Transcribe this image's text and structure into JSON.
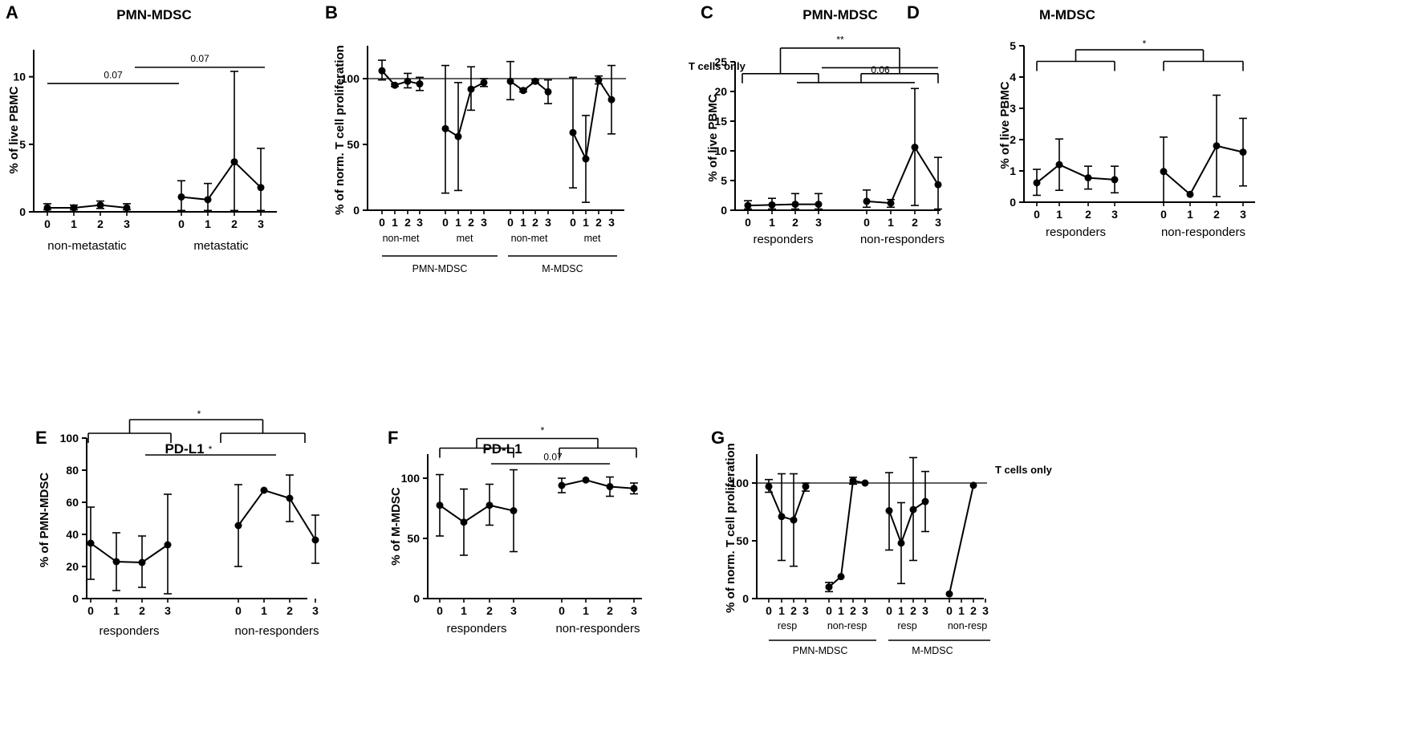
{
  "chart_data": [
    {
      "id": "A",
      "type": "line",
      "title": "PMN-MDSC",
      "ylabel": "% of live PBMC",
      "ylim": [
        0,
        12
      ],
      "yticks": [
        0,
        5,
        10
      ],
      "groups": [
        {
          "name": "non-metastatic",
          "x": [
            "0",
            "1",
            "2",
            "3"
          ],
          "values": [
            0.3,
            0.3,
            0.5,
            0.3
          ],
          "err_low": [
            0.15,
            0.15,
            0.25,
            0.15
          ],
          "err_high": [
            0.6,
            0.5,
            0.8,
            0.6
          ]
        },
        {
          "name": "metastatic",
          "x": [
            "0",
            "1",
            "2",
            "3"
          ],
          "values": [
            1.1,
            0.9,
            3.7,
            1.8
          ],
          "err_low": [
            0.1,
            0.1,
            0.1,
            0.1
          ],
          "err_high": [
            2.3,
            2.1,
            10.4,
            4.7
          ]
        }
      ],
      "annotations": [
        {
          "text": "0.07",
          "from": [
            0,
            0
          ],
          "to": [
            1,
            0
          ],
          "y": 9.5
        },
        {
          "text": "0.07",
          "from": [
            0,
            3
          ],
          "to": [
            1,
            3
          ],
          "y": 10.7
        }
      ]
    },
    {
      "id": "B",
      "type": "line",
      "title": "",
      "ylabel": "% of norm. T cell proliferation",
      "ylim": [
        0,
        125
      ],
      "yticks": [
        0,
        50,
        100
      ],
      "refline": {
        "value": 100,
        "label": "T cells only"
      },
      "groups": [
        {
          "name": "non-met",
          "x": [
            "0",
            "1",
            "2",
            "3"
          ],
          "values": [
            106,
            95,
            98,
            96
          ],
          "err_low": [
            99,
            94,
            93,
            91
          ],
          "err_high": [
            114,
            96,
            104,
            101
          ]
        },
        {
          "name": "met",
          "x": [
            "0",
            "1",
            "2",
            "3"
          ],
          "values": [
            62,
            56,
            92,
            97
          ],
          "err_low": [
            13,
            15,
            76,
            94
          ],
          "err_high": [
            110,
            97,
            109,
            100
          ]
        },
        {
          "name": "non-met",
          "x": [
            "0",
            "1",
            "2",
            "3"
          ],
          "values": [
            98,
            91,
            98,
            90
          ],
          "err_low": [
            84,
            90,
            97,
            81
          ],
          "err_high": [
            113,
            92,
            99,
            99
          ]
        },
        {
          "name": "met",
          "x": [
            "0",
            "1",
            "2",
            "3"
          ],
          "values": [
            59,
            39,
            99,
            84
          ],
          "err_low": [
            17,
            6,
            96,
            58
          ],
          "err_high": [
            101,
            72,
            102,
            110
          ]
        }
      ],
      "supergroups": [
        "PMN-MDSC",
        "M-MDSC"
      ]
    },
    {
      "id": "C",
      "type": "line",
      "title": "PMN-MDSC",
      "ylabel": "% of live PBMC",
      "ylim": [
        0,
        25
      ],
      "yticks": [
        0,
        5,
        10,
        15,
        20,
        25
      ],
      "groups": [
        {
          "name": "responders",
          "x": [
            "0",
            "1",
            "2",
            "3"
          ],
          "values": [
            0.8,
            0.9,
            1.0,
            1.0
          ],
          "err_low": [
            0.2,
            0.2,
            0.2,
            0.2
          ],
          "err_high": [
            1.6,
            2.0,
            2.8,
            2.8
          ]
        },
        {
          "name": "non-responders",
          "x": [
            "0",
            "1",
            "2",
            "3"
          ],
          "values": [
            1.5,
            1.2,
            10.6,
            4.3
          ],
          "err_low": [
            0.5,
            0.5,
            0.8,
            0.2
          ],
          "err_high": [
            3.4,
            1.8,
            20.5,
            8.9
          ]
        }
      ],
      "annotations": [
        {
          "text": "**",
          "y": 27.4
        },
        {
          "text": "0.06",
          "y": 24
        },
        {
          "text": "*",
          "y": 21.5
        }
      ]
    },
    {
      "id": "D",
      "type": "line",
      "title": "M-MDSC",
      "ylabel": "% of live PBMC",
      "ylim": [
        0,
        5
      ],
      "yticks": [
        0,
        1,
        2,
        3,
        4,
        5
      ],
      "groups": [
        {
          "name": "responders",
          "x": [
            "0",
            "1",
            "2",
            "3"
          ],
          "values": [
            0.62,
            1.2,
            0.78,
            0.72
          ],
          "err_low": [
            0.22,
            0.38,
            0.42,
            0.3
          ],
          "err_high": [
            1.05,
            2.02,
            1.15,
            1.15
          ]
        },
        {
          "name": "non-responders",
          "x": [
            "0",
            "1",
            "2",
            "3"
          ],
          "values": [
            0.98,
            0.25,
            1.8,
            1.6
          ],
          "err_low": [
            -0.12,
            0.25,
            0.18,
            0.52
          ],
          "err_high": [
            2.08,
            0.25,
            3.42,
            2.68
          ]
        }
      ],
      "annotations": [
        {
          "text": "*",
          "y": 4.9
        }
      ]
    },
    {
      "id": "E",
      "type": "line",
      "title": "PD-L1",
      "ylabel": "% of PMN-MDSC",
      "ylim": [
        0,
        100
      ],
      "yticks": [
        0,
        20,
        40,
        60,
        80,
        100
      ],
      "groups": [
        {
          "name": "responders",
          "x": [
            "0",
            "1",
            "2",
            "3"
          ],
          "values": [
            34.5,
            23,
            22.5,
            33.5
          ],
          "err_low": [
            12,
            5,
            7,
            3
          ],
          "err_high": [
            57,
            41,
            39,
            65
          ]
        },
        {
          "name": "non-responders",
          "x": [
            "0",
            "1",
            "2",
            "3"
          ],
          "values": [
            45.5,
            67.5,
            62.5,
            36.5
          ],
          "err_low": [
            20,
            67.5,
            48,
            22
          ],
          "err_high": [
            71,
            67.5,
            77,
            52
          ]
        }
      ],
      "annotations": [
        {
          "text": "*",
          "y": 109
        },
        {
          "text": "*",
          "y": 89.5
        }
      ]
    },
    {
      "id": "F",
      "type": "line",
      "title": "PD-L1",
      "ylabel": "% of M-MDSC",
      "ylim": [
        0,
        120
      ],
      "yticks": [
        0,
        50,
        100
      ],
      "groups": [
        {
          "name": "responders",
          "x": [
            "0",
            "1",
            "2",
            "3"
          ],
          "values": [
            77.5,
            63.5,
            77.5,
            73
          ],
          "err_low": [
            52,
            36,
            61,
            39
          ],
          "err_high": [
            103,
            91,
            95,
            107
          ]
        },
        {
          "name": "non-responders",
          "x": [
            "0",
            "1",
            "2",
            "3"
          ],
          "values": [
            94,
            98.5,
            93,
            91.5
          ],
          "err_low": [
            88,
            98.5,
            85,
            87
          ],
          "err_high": [
            100,
            98.5,
            101,
            96
          ]
        }
      ],
      "annotations": [
        {
          "text": "*",
          "y": 131
        },
        {
          "text": "0.07",
          "y": 112
        }
      ]
    },
    {
      "id": "G",
      "type": "line",
      "title": "",
      "ylabel": "% of norm. T cell proliferation",
      "ylim": [
        0,
        125
      ],
      "yticks": [
        0,
        50,
        100
      ],
      "refline": {
        "value": 100,
        "label": "T cells only"
      },
      "groups": [
        {
          "name": "resp",
          "x": [
            "0",
            "1",
            "2",
            "3"
          ],
          "values": [
            97,
            71,
            68,
            97
          ],
          "err_low": [
            92,
            33,
            28,
            93
          ],
          "err_high": [
            103,
            108,
            108,
            100
          ]
        },
        {
          "name": "non-resp",
          "x": [
            "0",
            "1",
            "2",
            "3"
          ],
          "values": [
            10,
            19,
            102,
            100
          ],
          "err_low": [
            6,
            19,
            99,
            100
          ],
          "err_high": [
            14,
            19,
            105,
            100
          ]
        },
        {
          "name": "resp",
          "x": [
            "0",
            "1",
            "2",
            "3"
          ],
          "values": [
            76,
            48,
            77,
            84
          ],
          "err_low": [
            42,
            13,
            33,
            58
          ],
          "err_high": [
            109,
            83,
            122,
            110
          ]
        },
        {
          "name": "non-resp",
          "x": [
            "0",
            "1",
            "2",
            "3"
          ],
          "values": [
            4,
            null,
            98,
            null
          ],
          "err_low": [
            4,
            null,
            98,
            null
          ],
          "err_high": [
            4,
            null,
            98,
            null
          ]
        }
      ],
      "supergroups": [
        "PMN-MDSC",
        "M-MDSC"
      ]
    }
  ]
}
